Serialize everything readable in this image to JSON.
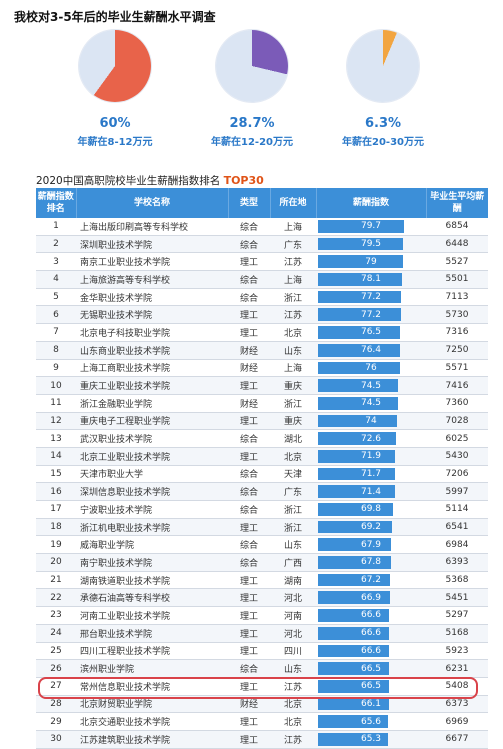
{
  "title": "我校对3-5年后的毕业生薪酬水平调查",
  "pies": [
    {
      "percent_label": "60%",
      "caption": "年薪在8-12万元",
      "fraction": 0.6,
      "color": "#e8634a"
    },
    {
      "percent_label": "28.7%",
      "caption": "年薪在12-20万元",
      "fraction": 0.287,
      "color": "#7b5bb8"
    },
    {
      "percent_label": "6.3%",
      "caption": "年薪在20-30万元",
      "fraction": 0.063,
      "color": "#f2a541"
    }
  ],
  "pie_bg_color": "#dbe5f3",
  "ranking": {
    "title_prefix": "2020中国高职院校毕业生薪酬指数排名",
    "title_badge": "TOP30",
    "headers": {
      "rank": "薪酬指数排名",
      "school": "学校名称",
      "type": "类型",
      "location": "所在地",
      "index": "薪酬指数",
      "avg_salary": "毕业生平均薪酬"
    },
    "index_max": 100,
    "rows": [
      {
        "rank": "1",
        "school": "上海出版印刷高等专科学校",
        "type": "综合",
        "location": "上海",
        "index": "79.7",
        "salary": "6854"
      },
      {
        "rank": "2",
        "school": "深圳职业技术学院",
        "type": "综合",
        "location": "广东",
        "index": "79.5",
        "salary": "6448"
      },
      {
        "rank": "3",
        "school": "南京工业职业技术学院",
        "type": "理工",
        "location": "江苏",
        "index": "79",
        "salary": "5527"
      },
      {
        "rank": "4",
        "school": "上海旅游高等专科学校",
        "type": "综合",
        "location": "上海",
        "index": "78.1",
        "salary": "5501"
      },
      {
        "rank": "5",
        "school": "金华职业技术学院",
        "type": "综合",
        "location": "浙江",
        "index": "77.2",
        "salary": "7113"
      },
      {
        "rank": "6",
        "school": "无锡职业技术学院",
        "type": "理工",
        "location": "江苏",
        "index": "77.2",
        "salary": "5730"
      },
      {
        "rank": "7",
        "school": "北京电子科技职业学院",
        "type": "理工",
        "location": "北京",
        "index": "76.5",
        "salary": "7316"
      },
      {
        "rank": "8",
        "school": "山东商业职业技术学院",
        "type": "财经",
        "location": "山东",
        "index": "76.4",
        "salary": "7250"
      },
      {
        "rank": "9",
        "school": "上海工商职业技术学院",
        "type": "财经",
        "location": "上海",
        "index": "76",
        "salary": "5571"
      },
      {
        "rank": "10",
        "school": "重庆工业职业技术学院",
        "type": "理工",
        "location": "重庆",
        "index": "74.5",
        "salary": "7416"
      },
      {
        "rank": "11",
        "school": "浙江金融职业学院",
        "type": "财经",
        "location": "浙江",
        "index": "74.5",
        "salary": "7360"
      },
      {
        "rank": "12",
        "school": "重庆电子工程职业学院",
        "type": "理工",
        "location": "重庆",
        "index": "74",
        "salary": "7028"
      },
      {
        "rank": "13",
        "school": "武汉职业技术学院",
        "type": "综合",
        "location": "湖北",
        "index": "72.6",
        "salary": "6025"
      },
      {
        "rank": "14",
        "school": "北京工业职业技术学院",
        "type": "理工",
        "location": "北京",
        "index": "71.9",
        "salary": "5430"
      },
      {
        "rank": "15",
        "school": "天津市职业大学",
        "type": "综合",
        "location": "天津",
        "index": "71.7",
        "salary": "7206"
      },
      {
        "rank": "16",
        "school": "深圳信息职业技术学院",
        "type": "综合",
        "location": "广东",
        "index": "71.4",
        "salary": "5997"
      },
      {
        "rank": "17",
        "school": "宁波职业技术学院",
        "type": "综合",
        "location": "浙江",
        "index": "69.8",
        "salary": "5114"
      },
      {
        "rank": "18",
        "school": "浙江机电职业技术学院",
        "type": "理工",
        "location": "浙江",
        "index": "69.2",
        "salary": "6541"
      },
      {
        "rank": "19",
        "school": "威海职业学院",
        "type": "综合",
        "location": "山东",
        "index": "67.9",
        "salary": "6984"
      },
      {
        "rank": "20",
        "school": "南宁职业技术学院",
        "type": "综合",
        "location": "广西",
        "index": "67.8",
        "salary": "6393"
      },
      {
        "rank": "21",
        "school": "湖南铁道职业技术学院",
        "type": "理工",
        "location": "湖南",
        "index": "67.2",
        "salary": "5368"
      },
      {
        "rank": "22",
        "school": "承德石油高等专科学校",
        "type": "理工",
        "location": "河北",
        "index": "66.9",
        "salary": "5451"
      },
      {
        "rank": "23",
        "school": "河南工业职业技术学院",
        "type": "理工",
        "location": "河南",
        "index": "66.6",
        "salary": "5297"
      },
      {
        "rank": "24",
        "school": "邢台职业技术学院",
        "type": "理工",
        "location": "河北",
        "index": "66.6",
        "salary": "5168"
      },
      {
        "rank": "25",
        "school": "四川工程职业技术学院",
        "type": "理工",
        "location": "四川",
        "index": "66.6",
        "salary": "5923"
      },
      {
        "rank": "26",
        "school": "滨州职业学院",
        "type": "综合",
        "location": "山东",
        "index": "66.5",
        "salary": "6231"
      },
      {
        "rank": "27",
        "school": "常州信息职业技术学院",
        "type": "理工",
        "location": "江苏",
        "index": "66.5",
        "salary": "5408"
      },
      {
        "rank": "28",
        "school": "北京财贸职业学院",
        "type": "财经",
        "location": "北京",
        "index": "66.1",
        "salary": "6373"
      },
      {
        "rank": "29",
        "school": "北京交通职业技术学院",
        "type": "理工",
        "location": "北京",
        "index": "65.6",
        "salary": "6969"
      },
      {
        "rank": "30",
        "school": "江苏建筑职业技术学院",
        "type": "理工",
        "location": "江苏",
        "index": "65.3",
        "salary": "6677"
      }
    ]
  },
  "colors": {
    "accent": "#3c8fd8",
    "pie_text": "#2a78c8",
    "badge": "#e05418",
    "highlight": "#d9434a"
  }
}
